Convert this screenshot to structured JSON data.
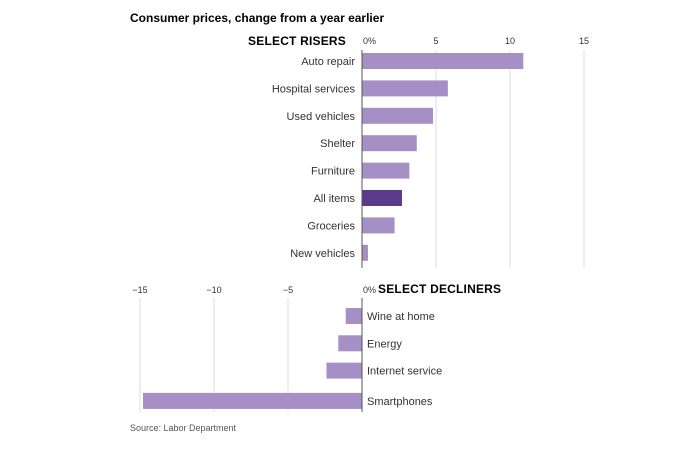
{
  "chart_data": [
    {
      "type": "bar",
      "orientation": "horizontal",
      "title": "Consumer prices, change from a year earlier",
      "section_label": "SELECT RISERS",
      "categories": [
        "Auto repair",
        "Hospital services",
        "Used vehicles",
        "Shelter",
        "Furniture",
        "All items",
        "Groceries",
        "New vehicles"
      ],
      "values": [
        10.9,
        5.8,
        4.8,
        3.7,
        3.2,
        2.7,
        2.2,
        0.4
      ],
      "highlight": "All items",
      "xlim": [
        0,
        15
      ],
      "ticks": [
        "0%",
        "5",
        "10",
        "15"
      ],
      "grid": true
    },
    {
      "type": "bar",
      "orientation": "horizontal",
      "section_label": "SELECT DECLINERS",
      "categories": [
        "Wine at home",
        "Energy",
        "Internet service",
        "Smartphones"
      ],
      "values": [
        -1.1,
        -1.6,
        -2.4,
        -14.8
      ],
      "xlim": [
        -15,
        0
      ],
      "ticks": [
        "−15",
        "−10",
        "−5",
        "0%"
      ],
      "grid": true
    }
  ],
  "source": "Source: Labor Department",
  "colors": {
    "bar": "#a58fc4",
    "highlight": "#5b3a8e",
    "grid": "#dddddd",
    "axis": "#555555"
  }
}
